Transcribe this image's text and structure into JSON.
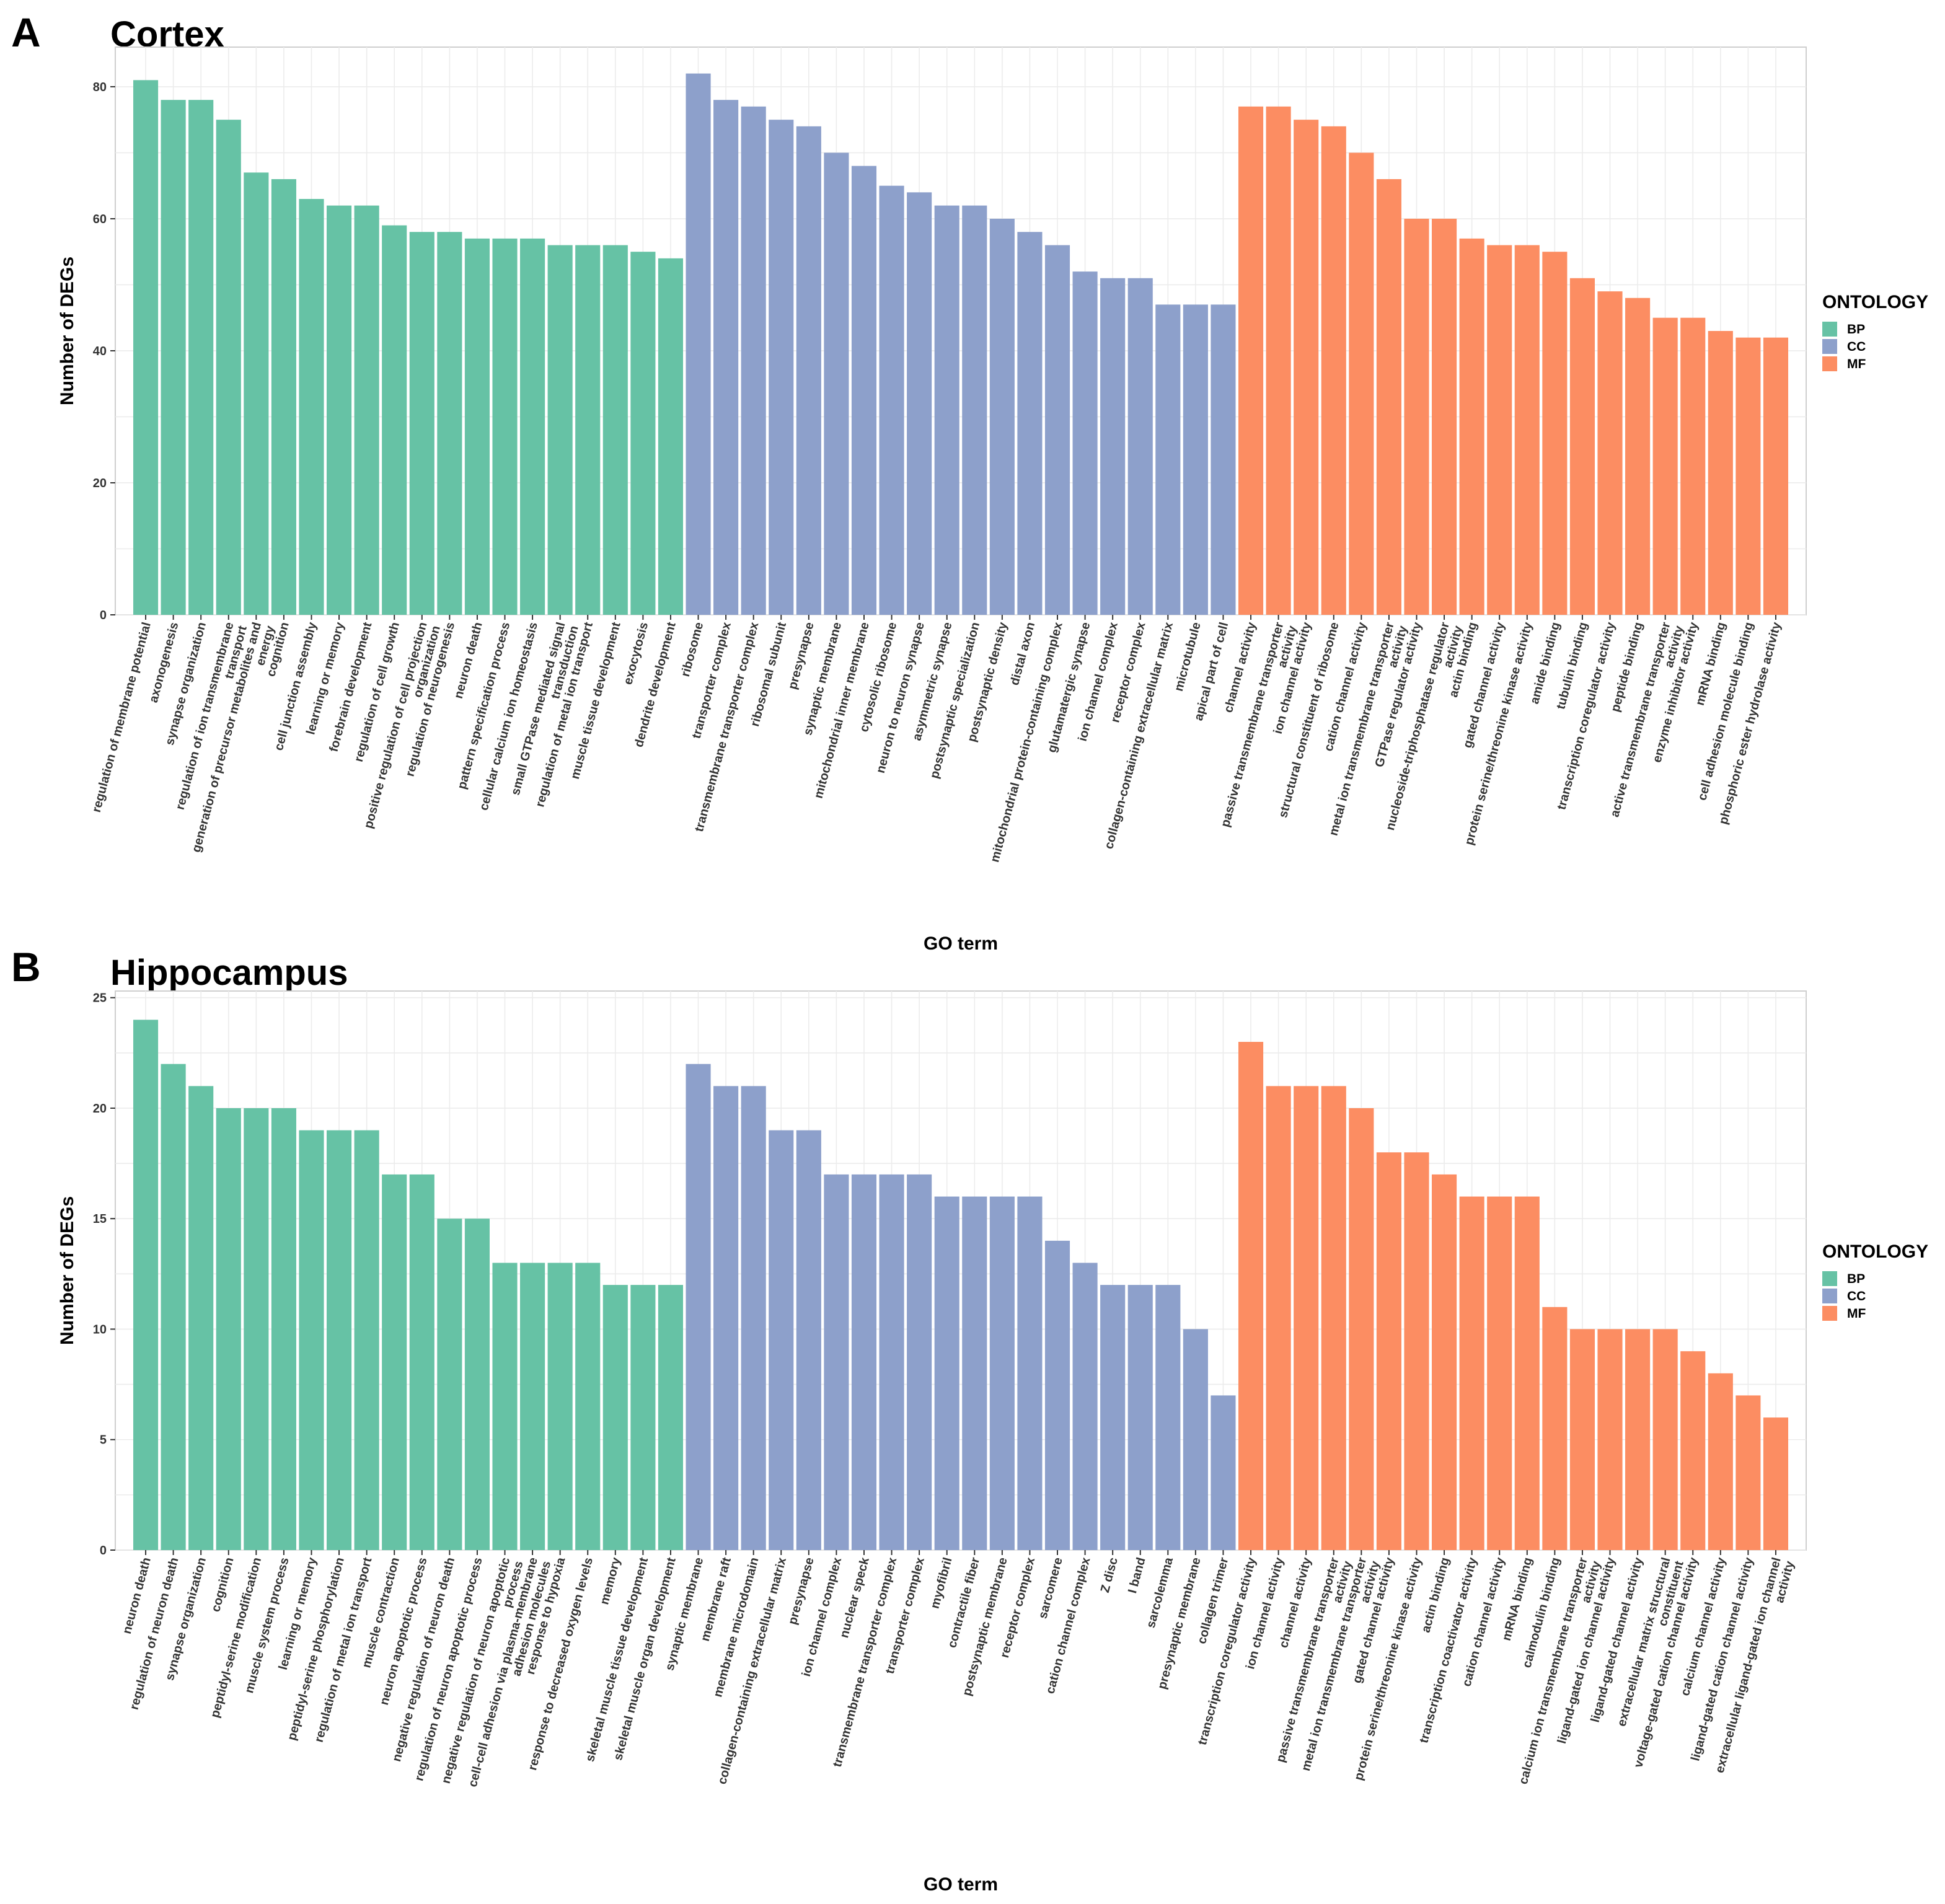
{
  "chart_data": [
    {
      "id": "A",
      "panel_label": "A",
      "title": "Cortex",
      "type": "bar",
      "xlabel": "GO term",
      "ylabel": "Number of DEGs",
      "ylim": [
        0,
        86
      ],
      "yticks": [
        0,
        20,
        40,
        60,
        80
      ],
      "grid": true,
      "legend": {
        "title": "ONTOLOGY",
        "position": "right",
        "entries": [
          "BP",
          "CC",
          "MF"
        ]
      },
      "colors": {
        "BP": "#66c2a5",
        "CC": "#8da0cb",
        "MF": "#fc8d62"
      },
      "categories": [
        "regulation of membrane potential",
        "axonogenesis",
        "synapse organization",
        "regulation of ion transmembrane\ntransport",
        "generation of precursor metabolites and\nenergy",
        "cognition",
        "cell junction assembly",
        "learning or memory",
        "forebrain development",
        "regulation of cell growth",
        "positive regulation of cell projection\norganization",
        "regulation of neurogenesis",
        "neuron death",
        "pattern specification process",
        "cellular calcium ion homeostasis",
        "small GTPase mediated signal\ntransduction",
        "regulation of metal ion transport",
        "muscle tissue development",
        "exocytosis",
        "dendrite development",
        "ribosome",
        "transporter complex",
        "transmembrane transporter complex",
        "ribosomal subunit",
        "presynapse",
        "synaptic membrane",
        "mitochondrial inner membrane",
        "cytosolic ribosome",
        "neuron to neuron synapse",
        "asymmetric synapse",
        "postsynaptic specialization",
        "postsynaptic density",
        "distal axon",
        "mitochondrial protein-containing complex",
        "glutamatergic synapse",
        "ion channel complex",
        "receptor complex",
        "collagen-containing extracellular matrix",
        "microtubule",
        "apical part of cell",
        "channel activity",
        "passive transmembrane transporter\nactivity",
        "ion channel activity",
        "structural constituent of ribosome",
        "cation channel activity",
        "metal ion transmembrane transporter\nactivity",
        "GTPase regulator activity",
        "nucleoside-triphosphatase regulator\nactivity",
        "actin binding",
        "gated channel activity",
        "protein serine/threonine kinase activity",
        "amide binding",
        "tubulin binding",
        "transcription coregulator activity",
        "peptide binding",
        "active transmembrane transporter\nactivity",
        "enzyme inhibitor activity",
        "mRNA binding",
        "cell adhesion molecule binding",
        "phosphoric ester hydrolase activity"
      ],
      "ontology": [
        "BP",
        "BP",
        "BP",
        "BP",
        "BP",
        "BP",
        "BP",
        "BP",
        "BP",
        "BP",
        "BP",
        "BP",
        "BP",
        "BP",
        "BP",
        "BP",
        "BP",
        "BP",
        "BP",
        "BP",
        "CC",
        "CC",
        "CC",
        "CC",
        "CC",
        "CC",
        "CC",
        "CC",
        "CC",
        "CC",
        "CC",
        "CC",
        "CC",
        "CC",
        "CC",
        "CC",
        "CC",
        "CC",
        "CC",
        "CC",
        "MF",
        "MF",
        "MF",
        "MF",
        "MF",
        "MF",
        "MF",
        "MF",
        "MF",
        "MF",
        "MF",
        "MF",
        "MF",
        "MF",
        "MF",
        "MF",
        "MF",
        "MF",
        "MF",
        "MF"
      ],
      "values": [
        81,
        78,
        78,
        75,
        67,
        66,
        63,
        62,
        62,
        59,
        58,
        58,
        57,
        57,
        57,
        56,
        56,
        56,
        55,
        54,
        82,
        78,
        77,
        75,
        74,
        70,
        68,
        65,
        64,
        62,
        62,
        60,
        58,
        56,
        52,
        51,
        51,
        47,
        47,
        47,
        77,
        77,
        75,
        74,
        70,
        66,
        60,
        60,
        57,
        56,
        56,
        55,
        51,
        49,
        48,
        45,
        45,
        43,
        42,
        42
      ]
    },
    {
      "id": "B",
      "panel_label": "B",
      "title": "Hippocampus",
      "type": "bar",
      "xlabel": "GO term",
      "ylabel": "Number of DEGs",
      "ylim": [
        0,
        25.3
      ],
      "yticks": [
        0,
        5,
        10,
        15,
        20,
        25
      ],
      "grid": true,
      "legend": {
        "title": "ONTOLOGY",
        "position": "right",
        "entries": [
          "BP",
          "CC",
          "MF"
        ]
      },
      "colors": {
        "BP": "#66c2a5",
        "CC": "#8da0cb",
        "MF": "#fc8d62"
      },
      "categories": [
        "neuron death",
        "regulation of neuron death",
        "synapse organization",
        "cognition",
        "peptidyl-serine modification",
        "muscle system process",
        "learning or memory",
        "peptidyl-serine phosphorylation",
        "regulation of metal ion transport",
        "muscle contraction",
        "neuron apoptotic process",
        "negative regulation of neuron death",
        "regulation of neuron apoptotic process",
        "negative regulation of neuron apoptotic\nprocess",
        "cell-cell adhesion via plasma-membrane\nadhesion molecules",
        "response to hypoxia",
        "response to decreased oxygen levels",
        "memory",
        "skeletal muscle tissue development",
        "skeletal muscle organ development",
        "synaptic membrane",
        "membrane raft",
        "membrane microdomain",
        "collagen-containing extracellular matrix",
        "presynapse",
        "ion channel complex",
        "nuclear speck",
        "transmembrane transporter complex",
        "transporter complex",
        "myofibril",
        "contractile fiber",
        "postsynaptic membrane",
        "receptor complex",
        "sarcomere",
        "cation channel complex",
        "Z disc",
        "I band",
        "sarcolemma",
        "presynaptic membrane",
        "collagen trimer",
        "transcription coregulator activity",
        "ion channel activity",
        "channel activity",
        "passive transmembrane transporter\nactivity",
        "metal ion transmembrane transporter\nactivity",
        "gated channel activity",
        "protein serine/threonine kinase activity",
        "actin binding",
        "transcription coactivator activity",
        "cation channel activity",
        "mRNA binding",
        "calmodulin binding",
        "calcium ion transmembrane transporter\nactivity",
        "ligand-gated ion channel activity",
        "ligand-gated channel activity",
        "extracellular matrix structural\nconstituent",
        "voltage-gated cation channel activity",
        "calcium channel activity",
        "ligand-gated cation channel activity",
        "extracellular ligand-gated ion channel\nactivity"
      ],
      "ontology": [
        "BP",
        "BP",
        "BP",
        "BP",
        "BP",
        "BP",
        "BP",
        "BP",
        "BP",
        "BP",
        "BP",
        "BP",
        "BP",
        "BP",
        "BP",
        "BP",
        "BP",
        "BP",
        "BP",
        "BP",
        "CC",
        "CC",
        "CC",
        "CC",
        "CC",
        "CC",
        "CC",
        "CC",
        "CC",
        "CC",
        "CC",
        "CC",
        "CC",
        "CC",
        "CC",
        "CC",
        "CC",
        "CC",
        "CC",
        "CC",
        "MF",
        "MF",
        "MF",
        "MF",
        "MF",
        "MF",
        "MF",
        "MF",
        "MF",
        "MF",
        "MF",
        "MF",
        "MF",
        "MF",
        "MF",
        "MF",
        "MF",
        "MF",
        "MF",
        "MF"
      ],
      "values": [
        24,
        22,
        21,
        20,
        20,
        20,
        19,
        19,
        19,
        17,
        17,
        15,
        15,
        13,
        13,
        13,
        13,
        12,
        12,
        12,
        22,
        21,
        21,
        19,
        19,
        17,
        17,
        17,
        17,
        16,
        16,
        16,
        16,
        14,
        13,
        12,
        12,
        12,
        10,
        7,
        23,
        21,
        21,
        21,
        20,
        18,
        18,
        17,
        16,
        16,
        16,
        11,
        10,
        10,
        10,
        10,
        9,
        8,
        7,
        6
      ]
    }
  ]
}
